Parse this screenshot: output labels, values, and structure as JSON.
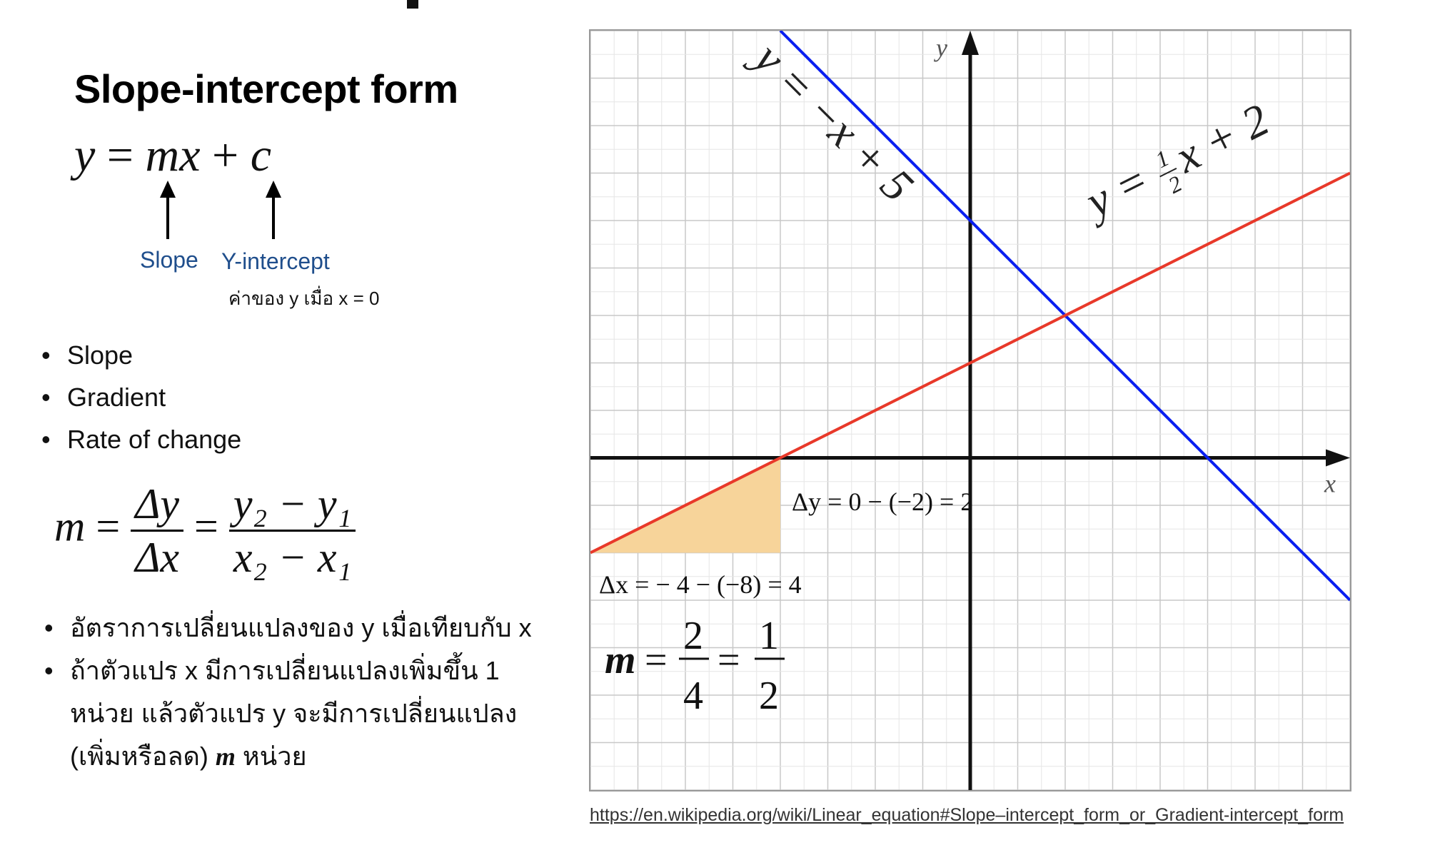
{
  "slide": {
    "heading": "Slope-intercept form",
    "formula": {
      "y": "y",
      "eq": "=",
      "m": "mx",
      "plus": "+",
      "c": "c"
    },
    "labels": {
      "slope": "Slope",
      "yintercept": "Y-intercept",
      "yintercept_note": "ค่าของ y เมื่อ x = 0"
    },
    "synonyms": [
      "Slope",
      "Gradient",
      "Rate of change"
    ],
    "slope_formula": {
      "m": "m",
      "eq": "=",
      "dy": "Δy",
      "dx": "Δx",
      "num": "y₂ − y₁",
      "den": "x₂ − x₁"
    },
    "meaning": [
      "อัตราการเปลี่ยนแปลงของ y เมื่อเทียบกับ x",
      "ถ้าตัวแปร x มีการเปลี่ยนแปลงเพิ่มขึ้น 1 หน่วย แล้วตัวแปร y จะมีการเปลี่ยนแปลง (เพิ่มหรือลด)",
      "m",
      "หน่วย"
    ],
    "source": "https://en.wikipedia.org/wiki/Linear_equation#Slope–intercept_form_or_Gradient-intercept_form"
  },
  "graph": {
    "x_axis_label": "x",
    "y_axis_label": "y",
    "x_range": [
      -8,
      8
    ],
    "y_range": [
      -7,
      9
    ],
    "grid": true,
    "line_blue": {
      "label": "y = −x + 5",
      "slope": -1,
      "intercept": 5,
      "color": "#0a1ff0"
    },
    "line_red": {
      "label_prefix": "y =",
      "label_frac_num": "1",
      "label_frac_den": "2",
      "label_suffix": "x + 2",
      "slope": 0.5,
      "intercept": 2,
      "color": "#e8392a"
    },
    "triangle": {
      "x1": -8,
      "y1": -2,
      "x2": -4,
      "y2": 0,
      "fill": "#f7d49a"
    },
    "annotations": {
      "dy": "Δy = 0 − (−2) = 2",
      "dx": "Δx = − 4 − (−8) = 4",
      "m_label": "m",
      "m_eq": "=",
      "m_frac1_num": "2",
      "m_frac1_den": "4",
      "m_frac2_num": "1",
      "m_frac2_den": "2"
    }
  }
}
